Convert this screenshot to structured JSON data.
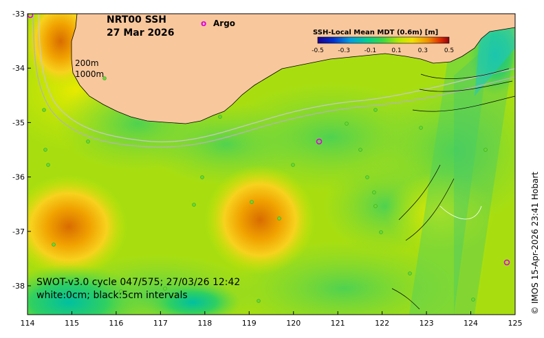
{
  "map": {
    "product": "NRT00 SSH",
    "date": "27 Mar 2026",
    "legend_marker": "o",
    "legend_label": "Argo",
    "isobath_200": "200m",
    "isobath_1000": "1000m",
    "swot_line1": "SWOT-v3.0 cycle 047/575; 27/03/26 12:42",
    "swot_line2": "white:0cm; black:5cm intervals",
    "credit": "© IMOS 15-Apr-2026 23:41 Hobart",
    "x_ticks": [
      "114",
      "115",
      "116",
      "117",
      "118",
      "119",
      "120",
      "121",
      "122",
      "123",
      "124",
      "125"
    ],
    "y_ticks": [
      "-33",
      "-34",
      "-35",
      "-36",
      "-37",
      "-38"
    ],
    "colorbar": {
      "title": "SSH-Local Mean MDT (0.6m) [m]",
      "ticks": [
        "-0.5",
        "-0.3",
        "-0.1",
        "0.1",
        "0.3",
        "0.5"
      ]
    },
    "colors": {
      "land": "#f8c79c",
      "argo": "#e000e0",
      "sea_base": "#b4e000",
      "warm": "#e88a00",
      "cool": "#00b870"
    }
  }
}
